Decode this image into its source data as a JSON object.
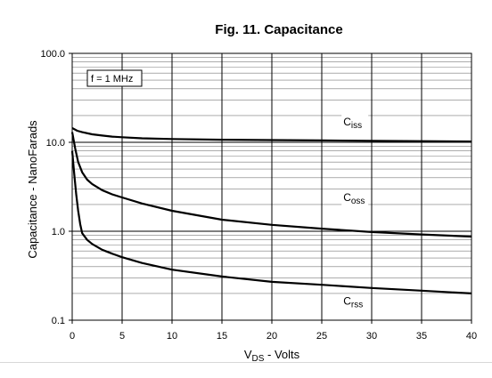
{
  "chart_data": {
    "type": "line",
    "title": "Fig. 11. Capacitance",
    "xlabel": "VDS - Volts",
    "xlabel_parts": {
      "main": "V",
      "sub": "DS",
      "rest": " - Volts"
    },
    "ylabel": "Capacitance - NanoFarads",
    "xlim": [
      0,
      40
    ],
    "ylim": [
      0.1,
      100
    ],
    "yscale": "log",
    "grid": true,
    "x_ticks": [
      0,
      5,
      10,
      15,
      20,
      25,
      30,
      35,
      40
    ],
    "y_ticks": [
      0.1,
      1.0,
      10.0,
      100.0
    ],
    "y_tick_labels": [
      "0.1",
      "1.0",
      "10.0",
      "100.0"
    ],
    "annotation": "f = 1 MHz",
    "series": [
      {
        "name": "Ciss",
        "label_main": "C",
        "label_sub": "iss",
        "label_at": [
          26,
          15.5
        ],
        "x": [
          0,
          0.5,
          1,
          2,
          3,
          4,
          5,
          7,
          10,
          15,
          20,
          25,
          30,
          35,
          40
        ],
        "y": [
          14.5,
          13.5,
          13.0,
          12.3,
          11.9,
          11.6,
          11.4,
          11.1,
          10.9,
          10.7,
          10.6,
          10.5,
          10.4,
          10.3,
          10.2
        ]
      },
      {
        "name": "Coss",
        "label_main": "C",
        "label_sub": "oss",
        "label_at": [
          26,
          2.2
        ],
        "x": [
          0,
          0.3,
          0.6,
          1,
          1.5,
          2,
          3,
          4,
          5,
          7,
          10,
          15,
          20,
          25,
          30,
          35,
          40
        ],
        "y": [
          13,
          8.5,
          6.0,
          4.6,
          3.8,
          3.4,
          2.9,
          2.6,
          2.4,
          2.05,
          1.7,
          1.35,
          1.18,
          1.07,
          0.98,
          0.92,
          0.87
        ]
      },
      {
        "name": "Crss",
        "label_main": "C",
        "label_sub": "rss",
        "label_at": [
          26,
          0.15
        ],
        "x": [
          0,
          0.2,
          0.4,
          0.6,
          0.8,
          1,
          1.5,
          2,
          3,
          4,
          5,
          7,
          10,
          15,
          20,
          25,
          30,
          35,
          40
        ],
        "y": [
          8.0,
          4.5,
          2.6,
          1.7,
          1.2,
          0.95,
          0.8,
          0.72,
          0.62,
          0.56,
          0.51,
          0.44,
          0.37,
          0.31,
          0.27,
          0.25,
          0.23,
          0.215,
          0.2
        ]
      }
    ]
  }
}
